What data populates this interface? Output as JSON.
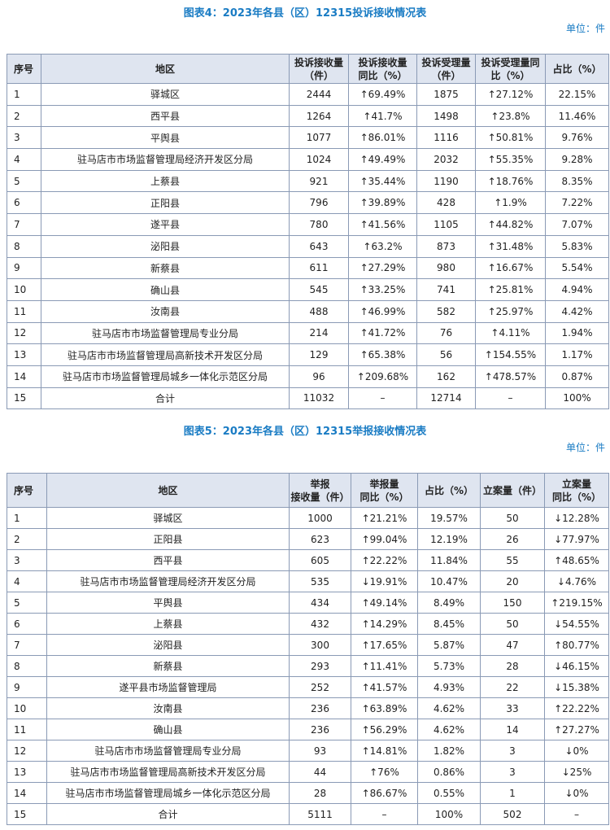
{
  "tables": [
    {
      "title": "图表4：2023年各县（区）12315投诉接收情况表",
      "unit": "单位：件",
      "header": [
        [
          "序号"
        ],
        [
          "地区"
        ],
        [
          "投诉接收量",
          "（件）"
        ],
        [
          "投诉接收量",
          "同比（%）"
        ],
        [
          "投诉受理量",
          "（件）"
        ],
        [
          "投诉受理量同",
          "比（%）"
        ],
        [
          "占比（%）"
        ]
      ],
      "rows": [
        [
          "1",
          "驿城区",
          "2444",
          "↑69.49%",
          "1875",
          "↑27.12%",
          "22.15%"
        ],
        [
          "2",
          "西平县",
          "1264",
          "↑41.7%",
          "1498",
          "↑23.8%",
          "11.46%"
        ],
        [
          "3",
          "平舆县",
          "1077",
          "↑86.01%",
          "1116",
          "↑50.81%",
          "9.76%"
        ],
        [
          "4",
          "驻马店市市场监督管理局经济开发区分局",
          "1024",
          "↑49.49%",
          "2032",
          "↑55.35%",
          "9.28%"
        ],
        [
          "5",
          "上蔡县",
          "921",
          "↑35.44%",
          "1190",
          "↑18.76%",
          "8.35%"
        ],
        [
          "6",
          "正阳县",
          "796",
          "↑39.89%",
          "428",
          "↑1.9%",
          "7.22%"
        ],
        [
          "7",
          "遂平县",
          "780",
          "↑41.56%",
          "1105",
          "↑44.82%",
          "7.07%"
        ],
        [
          "8",
          "泌阳县",
          "643",
          "↑63.2%",
          "873",
          "↑31.48%",
          "5.83%"
        ],
        [
          "9",
          "新蔡县",
          "611",
          "↑27.29%",
          "980",
          "↑16.67%",
          "5.54%"
        ],
        [
          "10",
          "确山县",
          "545",
          "↑33.25%",
          "741",
          "↑25.81%",
          "4.94%"
        ],
        [
          "11",
          "汝南县",
          "488",
          "↑46.99%",
          "582",
          "↑25.97%",
          "4.42%"
        ],
        [
          "12",
          "驻马店市市场监督管理局专业分局",
          "214",
          "↑41.72%",
          "76",
          "↑4.11%",
          "1.94%"
        ],
        [
          "13",
          "驻马店市市场监督管理局高新技术开发区分局",
          "129",
          "↑65.38%",
          "56",
          "↑154.55%",
          "1.17%"
        ],
        [
          "14",
          "驻马店市市场监督管理局城乡一体化示范区分局",
          "96",
          "↑209.68%",
          "162",
          "↑478.57%",
          "0.87%"
        ],
        [
          "15",
          "合计",
          "11032",
          "–",
          "12714",
          "–",
          "100%"
        ]
      ]
    },
    {
      "title": "图表5：2023年各县（区）12315举报接收情况表",
      "unit": "单位：件",
      "header": [
        [
          "序号"
        ],
        [
          "地区"
        ],
        [
          "举报",
          "接收量（件）"
        ],
        [
          "举报量",
          "同比（%）"
        ],
        [
          "占比（%）"
        ],
        [
          "立案量（件）"
        ],
        [
          "立案量",
          "同比（%）"
        ]
      ],
      "rows": [
        [
          "1",
          "驿城区",
          "1000",
          "↑21.21%",
          "19.57%",
          "50",
          "↓12.28%"
        ],
        [
          "2",
          "正阳县",
          "623",
          "↑99.04%",
          "12.19%",
          "26",
          "↓77.97%"
        ],
        [
          "3",
          "西平县",
          "605",
          "↑22.22%",
          "11.84%",
          "55",
          "↑48.65%"
        ],
        [
          "4",
          "驻马店市市场监督管理局经济开发区分局",
          "535",
          "↓19.91%",
          "10.47%",
          "20",
          "↓4.76%"
        ],
        [
          "5",
          "平舆县",
          "434",
          "↑49.14%",
          "8.49%",
          "150",
          "↑219.15%"
        ],
        [
          "6",
          "上蔡县",
          "432",
          "↑14.29%",
          "8.45%",
          "50",
          "↓54.55%"
        ],
        [
          "7",
          "泌阳县",
          "300",
          "↑17.65%",
          "5.87%",
          "47",
          "↑80.77%"
        ],
        [
          "8",
          "新蔡县",
          "293",
          "↑11.41%",
          "5.73%",
          "28",
          "↓46.15%"
        ],
        [
          "9",
          "遂平县市场监督管理局",
          "252",
          "↑41.57%",
          "4.93%",
          "22",
          "↓15.38%"
        ],
        [
          "10",
          "汝南县",
          "236",
          "↑63.89%",
          "4.62%",
          "33",
          "↑22.22%"
        ],
        [
          "11",
          "确山县",
          "236",
          "↑56.29%",
          "4.62%",
          "14",
          "↑27.27%"
        ],
        [
          "12",
          "驻马店市市场监督管理局专业分局",
          "93",
          "↑14.81%",
          "1.82%",
          "3",
          "↓0%"
        ],
        [
          "13",
          "驻马店市市场监督管理局高新技术开发区分局",
          "44",
          "↑76%",
          "0.86%",
          "3",
          "↓25%"
        ],
        [
          "14",
          "驻马店市市场监督管理局城乡一体化示范区分局",
          "28",
          "↑86.67%",
          "0.55%",
          "1",
          "↓0%"
        ],
        [
          "15",
          "合计",
          "5111",
          "–",
          "100%",
          "502",
          "–"
        ]
      ]
    }
  ]
}
